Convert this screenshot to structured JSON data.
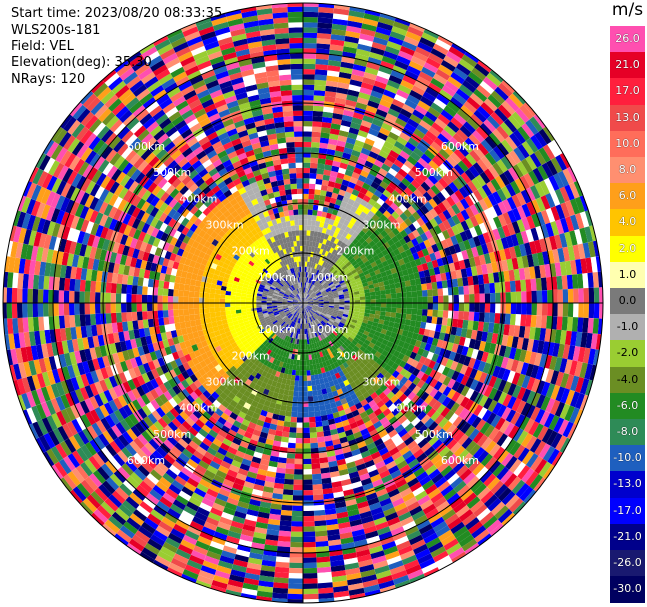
{
  "header": {
    "start_time": "Start time: 2023/08/20 08:33:35",
    "instrument": "WLS200s-181",
    "field": "Field: VEL",
    "elevation": "Elevation(deg): 35.30",
    "nrays": "NRays: 120"
  },
  "colorbar": {
    "unit": "m/s",
    "labels": [
      "26.0",
      "21.0",
      "17.0",
      "13.0",
      "10.0",
      "8.0",
      "6.0",
      "4.0",
      "2.0",
      "1.0",
      "0.0",
      "-1.0",
      "-2.0",
      "-4.0",
      "-6.0",
      "-8.0",
      "-10.0",
      "-13.0",
      "-17.0",
      "-21.0",
      "-26.0",
      "-30.0"
    ],
    "colors": [
      "#ff4fb0",
      "#e60026",
      "#ff1f3d",
      "#f04a4a",
      "#ff6d5a",
      "#ff8f70",
      "#ff9f1a",
      "#ffc400",
      "#ffff00",
      "#ffffb0",
      "#7a7a7a",
      "#b0b0b0",
      "#9acd32",
      "#6b8e23",
      "#228b22",
      "#2e8b57",
      "#1e5fbf",
      "#0000cd",
      "#0000ff",
      "#00008b",
      "#191970",
      "#000060"
    ]
  },
  "chart_data": {
    "type": "ppi",
    "field": "VEL",
    "unit": "m/s",
    "nrays": 120,
    "elevation_deg": 35.3,
    "range_rings_km": [
      "100km",
      "200km",
      "300km",
      "400km",
      "500km",
      "600km"
    ],
    "value_range": [
      -30,
      26
    ],
    "palette_order": [
      "26.0",
      "21.0",
      "17.0",
      "13.0",
      "10.0",
      "8.0",
      "6.0",
      "4.0",
      "2.0",
      "1.0",
      "0.0",
      "-1.0",
      "-2.0",
      "-4.0",
      "-6.0",
      "-8.0",
      "-10.0",
      "-13.0",
      "-17.0",
      "-21.0",
      "-26.0",
      "-30.0"
    ]
  }
}
